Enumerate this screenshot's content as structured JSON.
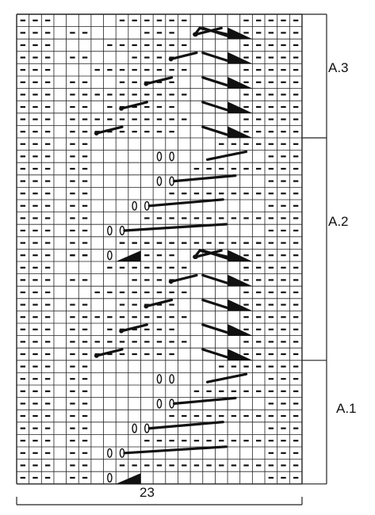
{
  "diagram": {
    "columns": 23,
    "rows": 38,
    "stitch_width_label": "23",
    "sections": [
      {
        "label": "A.3",
        "rows": 10
      },
      {
        "label": "A.2",
        "rows": 18
      },
      {
        "label": "A.1",
        "rows": 10
      }
    ],
    "purl_columns_static": [
      1,
      2,
      3,
      21,
      22,
      23
    ],
    "colors": {
      "grid": "#222222",
      "symbol": "#111111",
      "background": "#ffffff"
    }
  }
}
